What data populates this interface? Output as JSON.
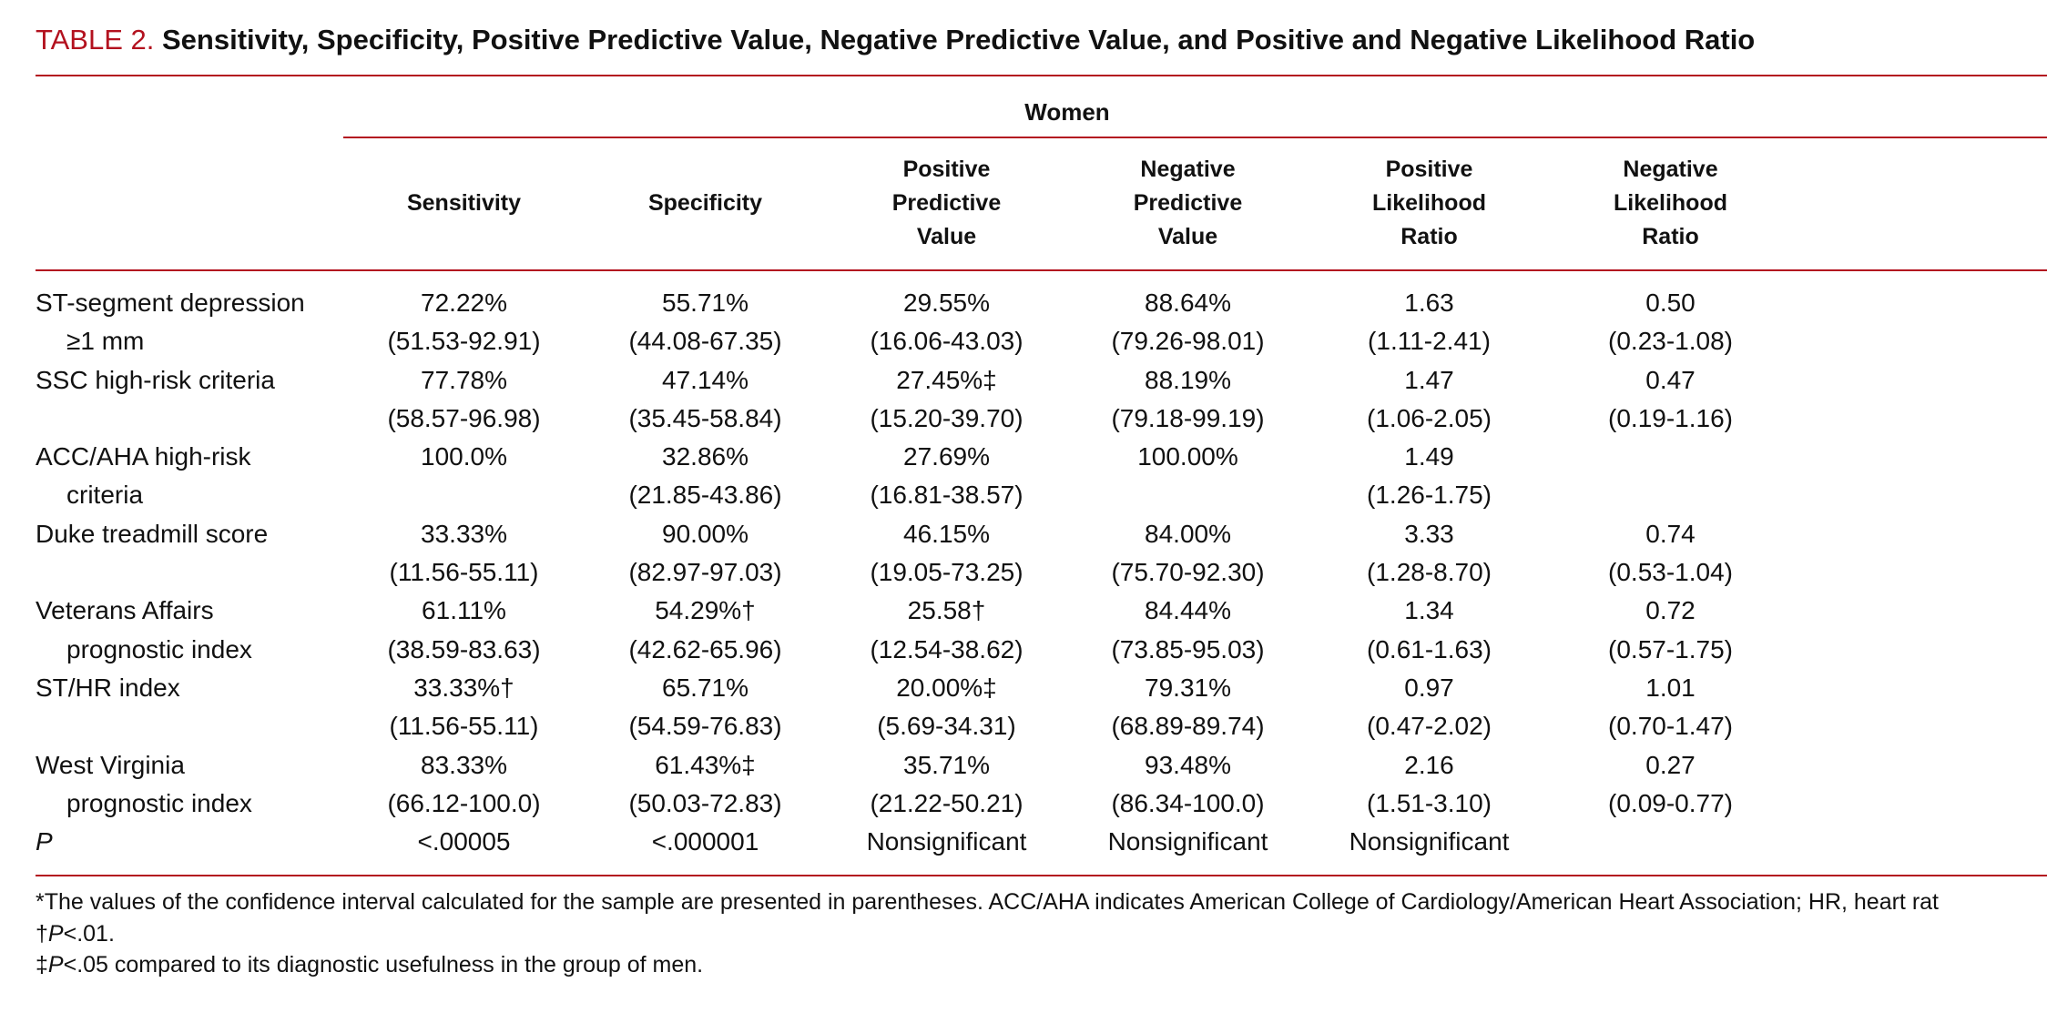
{
  "title": {
    "prefix": "TABLE 2.",
    "text": "Sensitivity, Specificity, Positive Predictive Value, Negative Predictive Value, and Positive and Negative Likelihood Ratio"
  },
  "table": {
    "group": "Women",
    "columns": [
      [
        "Sensitivity"
      ],
      [
        "Specificity"
      ],
      [
        "Positive",
        "Predictive",
        "Value"
      ],
      [
        "Negative",
        "Predictive",
        "Value"
      ],
      [
        "Positive",
        "Likelihood",
        "Ratio"
      ],
      [
        "Negative",
        "Likelihood",
        "Ratio"
      ]
    ],
    "rows": [
      {
        "label": [
          "ST-segment depression",
          "≥1 mm"
        ],
        "cells": [
          [
            "72.22%",
            "(51.53-92.91)"
          ],
          [
            "55.71%",
            "(44.08-67.35)"
          ],
          [
            "29.55%",
            "(16.06-43.03)"
          ],
          [
            "88.64%",
            "(79.26-98.01)"
          ],
          [
            "1.63",
            "(1.11-2.41)"
          ],
          [
            "0.50",
            "(0.23-1.08)"
          ]
        ]
      },
      {
        "label": [
          "SSC high-risk criteria"
        ],
        "cells": [
          [
            "77.78%",
            "(58.57-96.98)"
          ],
          [
            "47.14%",
            "(35.45-58.84)"
          ],
          [
            "27.45%‡",
            "(15.20-39.70)"
          ],
          [
            "88.19%",
            "(79.18-99.19)"
          ],
          [
            "1.47",
            "(1.06-2.05)"
          ],
          [
            "0.47",
            "(0.19-1.16)"
          ]
        ]
      },
      {
        "label": [
          "ACC/AHA high-risk",
          "criteria"
        ],
        "cells": [
          [
            "100.0%"
          ],
          [
            "32.86%",
            "(21.85-43.86)"
          ],
          [
            "27.69%",
            "(16.81-38.57)"
          ],
          [
            "100.00%"
          ],
          [
            "1.49",
            "(1.26-1.75)"
          ],
          null
        ]
      },
      {
        "label": [
          "Duke treadmill score"
        ],
        "cells": [
          [
            "33.33%",
            "(11.56-55.11)"
          ],
          [
            "90.00%",
            "(82.97-97.03)"
          ],
          [
            "46.15%",
            "(19.05-73.25)"
          ],
          [
            "84.00%",
            "(75.70-92.30)"
          ],
          [
            "3.33",
            "(1.28-8.70)"
          ],
          [
            "0.74",
            "(0.53-1.04)"
          ]
        ]
      },
      {
        "label": [
          "Veterans Affairs",
          "prognostic index"
        ],
        "cells": [
          [
            "61.11%",
            "(38.59-83.63)"
          ],
          [
            "54.29%†",
            "(42.62-65.96)"
          ],
          [
            "25.58†",
            "(12.54-38.62)"
          ],
          [
            "84.44%",
            "(73.85-95.03)"
          ],
          [
            "1.34",
            "(0.61-1.63)"
          ],
          [
            "0.72",
            "(0.57-1.75)"
          ]
        ]
      },
      {
        "label": [
          "ST/HR index"
        ],
        "cells": [
          [
            "33.33%†",
            "(11.56-55.11)"
          ],
          [
            "65.71%",
            "(54.59-76.83)"
          ],
          [
            "20.00%‡",
            "(5.69-34.31)"
          ],
          [
            "79.31%",
            "(68.89-89.74)"
          ],
          [
            "0.97",
            "(0.47-2.02)"
          ],
          [
            "1.01",
            "(0.70-1.47)"
          ]
        ]
      },
      {
        "label": [
          "West Virginia",
          "prognostic index"
        ],
        "cells": [
          [
            "83.33%",
            "(66.12-100.0)"
          ],
          [
            "61.43%‡",
            "(50.03-72.83)"
          ],
          [
            "35.71%",
            "(21.22-50.21)"
          ],
          [
            "93.48%",
            "(86.34-100.0)"
          ],
          [
            "2.16",
            "(1.51-3.10)"
          ],
          [
            "0.27",
            "(0.09-0.77)"
          ]
        ]
      },
      {
        "label": [
          "P"
        ],
        "italic": true,
        "cells": [
          [
            "<.00005"
          ],
          [
            "<.000001"
          ],
          [
            "Nonsignificant"
          ],
          [
            "Nonsignificant"
          ],
          [
            "Nonsignificant"
          ],
          null
        ]
      }
    ]
  },
  "footnotes": [
    {
      "text": "*The values of the confidence interval calculated for the sample are presented in parentheses. ACC/AHA indicates American College of Cardiology/American Heart Association; HR, heart rat"
    },
    {
      "mark": "†",
      "italic": "P",
      "rest": "<.01."
    },
    {
      "mark": "‡",
      "italic": "P",
      "rest": "<.05 compared to its diagnostic usefulness in the group of men."
    }
  ]
}
